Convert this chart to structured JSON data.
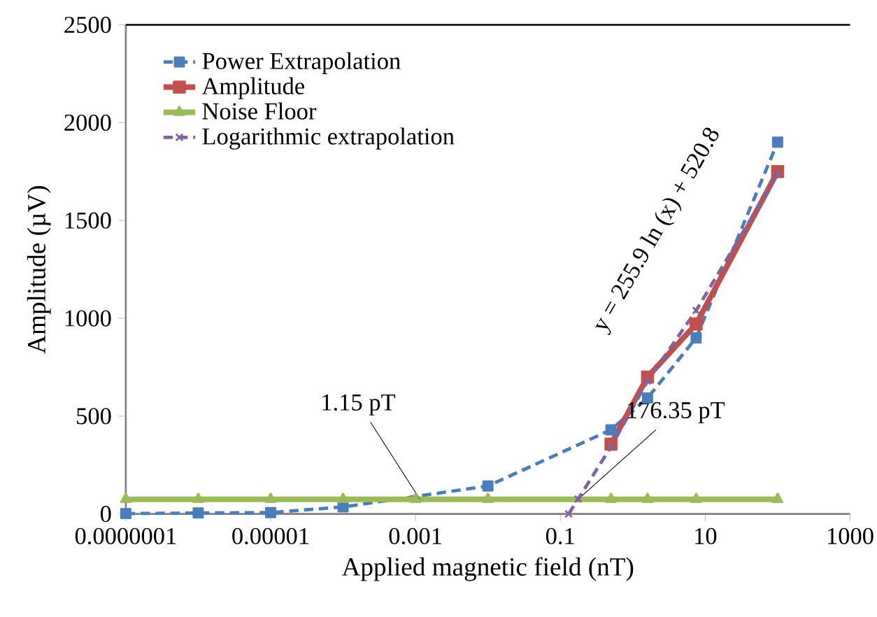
{
  "chart_data": {
    "type": "line",
    "xlabel": "Applied magnetic field (nT)",
    "ylabel": "Amplitude (µV)",
    "log": "x",
    "xlim": [
      1e-07,
      1000
    ],
    "ylim": [
      0,
      2500
    ],
    "xticks": [
      {
        "value": 1e-07,
        "label": "0.0000001"
      },
      {
        "value": 1e-05,
        "label": "0.00001"
      },
      {
        "value": 0.001,
        "label": "0.001"
      },
      {
        "value": 0.1,
        "label": "0.1"
      },
      {
        "value": 10,
        "label": "10"
      },
      {
        "value": 1000,
        "label": "1000"
      }
    ],
    "yticks": [
      0,
      500,
      1000,
      1500,
      2000,
      2500
    ],
    "grid": false,
    "legend": "top left",
    "series": [
      {
        "name": "Power Extrapolation",
        "color": "#4a7ebb",
        "marker": "square",
        "line_style": "dashed",
        "x": [
          1e-07,
          1e-06,
          1e-05,
          0.0001,
          0.001,
          0.01,
          0.5,
          1.6,
          7.5,
          100
        ],
        "values": [
          2,
          5,
          7,
          36,
          null,
          143,
          430,
          593,
          900,
          1900
        ]
      },
      {
        "name": "Amplitude",
        "color": "#c0504d",
        "marker": "square",
        "line_style": "solid",
        "x": [
          0.5,
          1.6,
          7.5,
          100
        ],
        "values": [
          357,
          700,
          971,
          1750
        ]
      },
      {
        "name": "Noise Floor",
        "color": "#9bbb59",
        "marker": "triangle",
        "line_style": "solid",
        "x": [
          1e-07,
          1e-06,
          1e-05,
          0.0001,
          0.001,
          0.01,
          0.5,
          1.6,
          7.5,
          100
        ],
        "values": [
          75,
          75,
          75,
          75,
          75,
          75,
          75,
          75,
          75,
          75
        ]
      },
      {
        "name": "Logarithmic extrapolation",
        "color": "#8064a2",
        "marker": "cross",
        "line_style": "dashed",
        "x": [
          0.13,
          0.176,
          0.5,
          1.6,
          7.5,
          100
        ],
        "values": [
          0,
          76,
          343,
          680,
          1040,
          1736
        ]
      }
    ],
    "annotations": [
      {
        "text": "1.15 pT",
        "x": 0.00115,
        "y": 75
      },
      {
        "text": "176.35 pT",
        "x": 0.17635,
        "y": 75
      },
      "y = 255.9 ln (x) + 520.8"
    ]
  }
}
